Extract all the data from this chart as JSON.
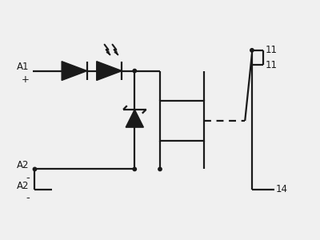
{
  "bg_color": "#f0f0f0",
  "line_color": "#1a1a1a",
  "lw": 1.6,
  "dot_r": 0.055,
  "xlim": [
    0,
    10
  ],
  "ylim": [
    0,
    7.5
  ],
  "labels": {
    "A1": "A1",
    "plus": "+",
    "A2t": "A2",
    "minus_t": "-",
    "A2b": "A2",
    "minus_b": "-",
    "t11a": "11",
    "t11b": "11",
    "t14": "14"
  },
  "font_size": 8.5
}
